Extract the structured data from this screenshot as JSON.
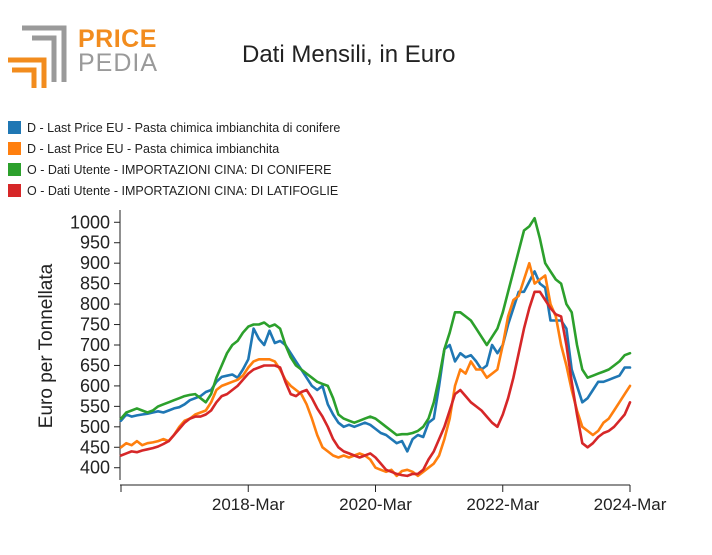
{
  "logo": {
    "word_top": "PRICE",
    "word_bottom": "PEDIA"
  },
  "chart_data": {
    "type": "line",
    "title": "Dati Mensili, in Euro",
    "ylabel": "Euro per Tonnellata",
    "xlabel": "",
    "ylim": [
      370,
      1030
    ],
    "yticks": [
      400,
      450,
      500,
      550,
      600,
      650,
      700,
      750,
      800,
      850,
      900,
      950,
      1000
    ],
    "xlim": [
      "2016-03",
      "2024-03"
    ],
    "xticks": [
      "2018-Mar",
      "2020-Mar",
      "2022-Mar",
      "2024-Mar"
    ],
    "legend_position": "top-left",
    "grid": false,
    "x": [
      "2016-03",
      "2016-04",
      "2016-05",
      "2016-06",
      "2016-07",
      "2016-08",
      "2016-09",
      "2016-10",
      "2016-11",
      "2016-12",
      "2017-01",
      "2017-02",
      "2017-03",
      "2017-04",
      "2017-05",
      "2017-06",
      "2017-07",
      "2017-08",
      "2017-09",
      "2017-10",
      "2017-11",
      "2017-12",
      "2018-01",
      "2018-02",
      "2018-03",
      "2018-04",
      "2018-05",
      "2018-06",
      "2018-07",
      "2018-08",
      "2018-09",
      "2018-10",
      "2018-11",
      "2018-12",
      "2019-01",
      "2019-02",
      "2019-03",
      "2019-04",
      "2019-05",
      "2019-06",
      "2019-07",
      "2019-08",
      "2019-09",
      "2019-10",
      "2019-11",
      "2019-12",
      "2020-01",
      "2020-02",
      "2020-03",
      "2020-04",
      "2020-05",
      "2020-06",
      "2020-07",
      "2020-08",
      "2020-09",
      "2020-10",
      "2020-11",
      "2020-12",
      "2021-01",
      "2021-02",
      "2021-03",
      "2021-04",
      "2021-05",
      "2021-06",
      "2021-07",
      "2021-08",
      "2021-09",
      "2021-10",
      "2021-11",
      "2021-12",
      "2022-01",
      "2022-02",
      "2022-03",
      "2022-04",
      "2022-05",
      "2022-06",
      "2022-07",
      "2022-08",
      "2022-09",
      "2022-10",
      "2022-11",
      "2022-12",
      "2023-01",
      "2023-02",
      "2023-03",
      "2023-04",
      "2023-05",
      "2023-06",
      "2023-07",
      "2023-08",
      "2023-09",
      "2023-10",
      "2023-11",
      "2023-12",
      "2024-01",
      "2024-02",
      "2024-03"
    ],
    "series": [
      {
        "name": "D - Last Price EU - Pasta chimica imbianchita di conifere",
        "color": "#1f77b4",
        "values": [
          515,
          530,
          525,
          528,
          530,
          532,
          535,
          538,
          535,
          540,
          545,
          548,
          555,
          565,
          570,
          575,
          585,
          590,
          610,
          622,
          625,
          628,
          620,
          640,
          665,
          740,
          715,
          700,
          735,
          705,
          710,
          700,
          680,
          660,
          640,
          620,
          600,
          590,
          600,
          555,
          530,
          510,
          500,
          505,
          500,
          505,
          510,
          505,
          495,
          485,
          480,
          470,
          460,
          465,
          440,
          470,
          480,
          475,
          510,
          520,
          600,
          690,
          700,
          660,
          680,
          670,
          675,
          660,
          640,
          650,
          700,
          680,
          700,
          750,
          790,
          830,
          830,
          855,
          880,
          850,
          840,
          760,
          760,
          760,
          740,
          640,
          600,
          560,
          570,
          590,
          610,
          610,
          615,
          620,
          625,
          645,
          645
        ]
      },
      {
        "name": "D - Last Price EU - Pasta chimica imbianchita",
        "color": "#ff7f0e",
        "values": [
          450,
          460,
          455,
          465,
          455,
          460,
          462,
          465,
          470,
          465,
          480,
          500,
          515,
          520,
          530,
          535,
          540,
          560,
          590,
          600,
          605,
          610,
          615,
          625,
          645,
          660,
          665,
          665,
          665,
          660,
          640,
          615,
          600,
          590,
          580,
          555,
          520,
          480,
          450,
          440,
          430,
          425,
          430,
          425,
          430,
          435,
          430,
          420,
          400,
          395,
          390,
          395,
          380,
          392,
          395,
          390,
          380,
          390,
          400,
          410,
          430,
          470,
          520,
          600,
          640,
          630,
          660,
          640,
          640,
          620,
          630,
          640,
          700,
          770,
          810,
          820,
          860,
          900,
          850,
          860,
          870,
          800,
          770,
          700,
          650,
          590,
          540,
          500,
          490,
          480,
          490,
          510,
          520,
          540,
          560,
          580,
          600
        ]
      },
      {
        "name": "O - Dati Utente - IMPORTAZIONI CINA: DI CONIFERE",
        "color": "#2ca02c",
        "values": [
          520,
          535,
          540,
          545,
          540,
          535,
          540,
          550,
          555,
          560,
          565,
          570,
          575,
          578,
          580,
          570,
          560,
          580,
          620,
          650,
          680,
          700,
          710,
          730,
          745,
          750,
          750,
          755,
          745,
          750,
          740,
          700,
          670,
          650,
          640,
          630,
          620,
          610,
          605,
          600,
          570,
          530,
          520,
          515,
          510,
          515,
          520,
          525,
          520,
          510,
          500,
          490,
          480,
          482,
          482,
          485,
          490,
          500,
          520,
          560,
          620,
          690,
          730,
          780,
          780,
          770,
          760,
          740,
          720,
          700,
          720,
          740,
          780,
          830,
          880,
          930,
          980,
          990,
          1010,
          960,
          900,
          880,
          860,
          850,
          800,
          780,
          700,
          640,
          620,
          625,
          630,
          635,
          640,
          650,
          660,
          675,
          680
        ]
      },
      {
        "name": "O - Dati Utente - IMPORTAZIONI CINA: DI LATIFOGLIE",
        "color": "#d62728",
        "values": [
          430,
          435,
          440,
          438,
          442,
          445,
          448,
          452,
          458,
          465,
          480,
          495,
          510,
          520,
          525,
          525,
          530,
          540,
          560,
          575,
          580,
          590,
          600,
          615,
          630,
          640,
          645,
          650,
          650,
          650,
          645,
          610,
          580,
          575,
          585,
          590,
          570,
          545,
          525,
          500,
          470,
          450,
          440,
          435,
          430,
          425,
          430,
          435,
          425,
          410,
          395,
          390,
          385,
          382,
          380,
          385,
          385,
          395,
          420,
          440,
          470,
          500,
          540,
          580,
          590,
          575,
          560,
          550,
          540,
          525,
          510,
          500,
          530,
          570,
          620,
          680,
          740,
          790,
          830,
          830,
          810,
          790,
          775,
          770,
          700,
          610,
          530,
          460,
          450,
          460,
          475,
          485,
          490,
          500,
          515,
          530,
          560
        ]
      }
    ]
  }
}
